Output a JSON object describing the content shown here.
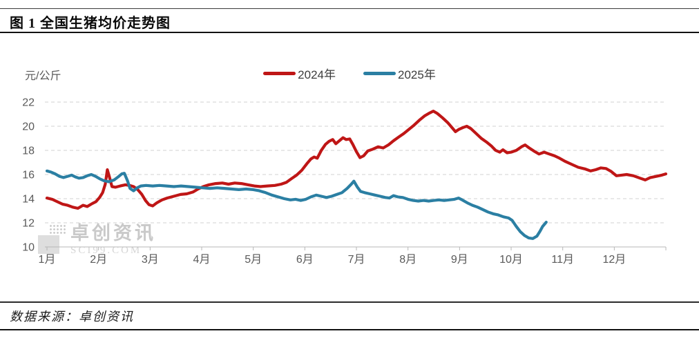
{
  "header": {
    "title": "图 1  全国生猪均价走势图"
  },
  "footer": {
    "source_label": "数据来源：卓创资讯"
  },
  "watermark": {
    "name": "卓创资讯",
    "site": "SCI99.COM"
  },
  "chart_data": {
    "type": "line",
    "title": "全国生猪均价走势图",
    "unit_label": "元/公斤",
    "xlabel": "",
    "ylabel": "元/公斤",
    "ylim": [
      10,
      22
    ],
    "yticks": [
      10,
      12,
      14,
      16,
      18,
      20,
      22
    ],
    "x_unit": "month (0 = Jan 1, 12 = Dec 31)",
    "xtick_labels": [
      "1月",
      "2月",
      "3月",
      "4月",
      "5月",
      "6月",
      "7月",
      "8月",
      "9月",
      "10月",
      "11月",
      "12月"
    ],
    "grid": "dashed horizontal gridlines",
    "legend_position": "top-center",
    "series": [
      {
        "name": "2024年",
        "color": "#bf1616",
        "points": [
          [
            0,
            14.05
          ],
          [
            0.1,
            13.95
          ],
          [
            0.2,
            13.75
          ],
          [
            0.3,
            13.55
          ],
          [
            0.4,
            13.45
          ],
          [
            0.5,
            13.3
          ],
          [
            0.6,
            13.2
          ],
          [
            0.7,
            13.45
          ],
          [
            0.78,
            13.35
          ],
          [
            0.88,
            13.6
          ],
          [
            0.95,
            13.75
          ],
          [
            1.02,
            14.1
          ],
          [
            1.08,
            14.5
          ],
          [
            1.13,
            15.2
          ],
          [
            1.17,
            16.4
          ],
          [
            1.21,
            15.8
          ],
          [
            1.26,
            15.0
          ],
          [
            1.33,
            14.95
          ],
          [
            1.42,
            15.05
          ],
          [
            1.52,
            15.15
          ],
          [
            1.6,
            15.1
          ],
          [
            1.68,
            15.0
          ],
          [
            1.76,
            14.75
          ],
          [
            1.84,
            14.35
          ],
          [
            1.91,
            13.85
          ],
          [
            1.98,
            13.5
          ],
          [
            2.05,
            13.4
          ],
          [
            2.13,
            13.65
          ],
          [
            2.23,
            13.9
          ],
          [
            2.33,
            14.05
          ],
          [
            2.46,
            14.2
          ],
          [
            2.59,
            14.35
          ],
          [
            2.71,
            14.4
          ],
          [
            2.83,
            14.55
          ],
          [
            2.93,
            14.8
          ],
          [
            3.03,
            15.0
          ],
          [
            3.14,
            15.15
          ],
          [
            3.27,
            15.25
          ],
          [
            3.4,
            15.3
          ],
          [
            3.52,
            15.2
          ],
          [
            3.64,
            15.3
          ],
          [
            3.77,
            15.25
          ],
          [
            3.9,
            15.15
          ],
          [
            4.02,
            15.05
          ],
          [
            4.14,
            15.0
          ],
          [
            4.27,
            15.05
          ],
          [
            4.42,
            15.1
          ],
          [
            4.54,
            15.2
          ],
          [
            4.64,
            15.35
          ],
          [
            4.74,
            15.65
          ],
          [
            4.84,
            15.95
          ],
          [
            4.94,
            16.35
          ],
          [
            5.04,
            16.9
          ],
          [
            5.12,
            17.3
          ],
          [
            5.18,
            17.45
          ],
          [
            5.24,
            17.35
          ],
          [
            5.32,
            18.0
          ],
          [
            5.4,
            18.5
          ],
          [
            5.47,
            18.75
          ],
          [
            5.54,
            18.9
          ],
          [
            5.6,
            18.55
          ],
          [
            5.67,
            18.8
          ],
          [
            5.74,
            19.05
          ],
          [
            5.8,
            18.9
          ],
          [
            5.87,
            18.95
          ],
          [
            5.93,
            18.5
          ],
          [
            6.0,
            17.9
          ],
          [
            6.07,
            17.4
          ],
          [
            6.14,
            17.55
          ],
          [
            6.22,
            17.95
          ],
          [
            6.32,
            18.1
          ],
          [
            6.42,
            18.3
          ],
          [
            6.52,
            18.2
          ],
          [
            6.62,
            18.45
          ],
          [
            6.72,
            18.8
          ],
          [
            6.82,
            19.1
          ],
          [
            6.92,
            19.4
          ],
          [
            7.02,
            19.75
          ],
          [
            7.12,
            20.1
          ],
          [
            7.22,
            20.5
          ],
          [
            7.32,
            20.85
          ],
          [
            7.42,
            21.1
          ],
          [
            7.49,
            21.25
          ],
          [
            7.57,
            21.05
          ],
          [
            7.67,
            20.7
          ],
          [
            7.77,
            20.3
          ],
          [
            7.85,
            19.9
          ],
          [
            7.92,
            19.55
          ],
          [
            7.99,
            19.75
          ],
          [
            8.07,
            19.9
          ],
          [
            8.14,
            20.0
          ],
          [
            8.22,
            19.8
          ],
          [
            8.32,
            19.4
          ],
          [
            8.42,
            19.0
          ],
          [
            8.52,
            18.7
          ],
          [
            8.62,
            18.35
          ],
          [
            8.7,
            18.0
          ],
          [
            8.78,
            17.85
          ],
          [
            8.84,
            18.05
          ],
          [
            8.92,
            17.8
          ],
          [
            9.0,
            17.85
          ],
          [
            9.1,
            18.0
          ],
          [
            9.2,
            18.3
          ],
          [
            9.27,
            18.45
          ],
          [
            9.35,
            18.2
          ],
          [
            9.44,
            17.95
          ],
          [
            9.54,
            17.7
          ],
          [
            9.64,
            17.85
          ],
          [
            9.74,
            17.7
          ],
          [
            9.84,
            17.55
          ],
          [
            9.94,
            17.35
          ],
          [
            10.04,
            17.1
          ],
          [
            10.17,
            16.85
          ],
          [
            10.3,
            16.6
          ],
          [
            10.44,
            16.45
          ],
          [
            10.54,
            16.3
          ],
          [
            10.64,
            16.4
          ],
          [
            10.74,
            16.55
          ],
          [
            10.84,
            16.5
          ],
          [
            10.94,
            16.25
          ],
          [
            11.04,
            15.9
          ],
          [
            11.14,
            15.95
          ],
          [
            11.24,
            16.0
          ],
          [
            11.37,
            15.9
          ],
          [
            11.5,
            15.7
          ],
          [
            11.6,
            15.55
          ],
          [
            11.7,
            15.75
          ],
          [
            11.82,
            15.85
          ],
          [
            11.92,
            15.95
          ],
          [
            12.0,
            16.05
          ]
        ]
      },
      {
        "name": "2025年",
        "color": "#2b7fa3",
        "points": [
          [
            0,
            16.3
          ],
          [
            0.08,
            16.2
          ],
          [
            0.16,
            16.05
          ],
          [
            0.24,
            15.85
          ],
          [
            0.32,
            15.75
          ],
          [
            0.4,
            15.85
          ],
          [
            0.48,
            15.95
          ],
          [
            0.55,
            15.8
          ],
          [
            0.62,
            15.7
          ],
          [
            0.7,
            15.75
          ],
          [
            0.78,
            15.9
          ],
          [
            0.86,
            16.0
          ],
          [
            0.94,
            15.85
          ],
          [
            1.02,
            15.65
          ],
          [
            1.1,
            15.5
          ],
          [
            1.2,
            15.4
          ],
          [
            1.3,
            15.55
          ],
          [
            1.38,
            15.8
          ],
          [
            1.45,
            16.05
          ],
          [
            1.5,
            16.1
          ],
          [
            1.56,
            15.5
          ],
          [
            1.61,
            14.85
          ],
          [
            1.68,
            14.65
          ],
          [
            1.75,
            14.9
          ],
          [
            1.82,
            15.05
          ],
          [
            1.92,
            15.1
          ],
          [
            2.05,
            15.05
          ],
          [
            2.18,
            15.1
          ],
          [
            2.32,
            15.05
          ],
          [
            2.46,
            15.0
          ],
          [
            2.6,
            15.05
          ],
          [
            2.74,
            15.0
          ],
          [
            2.88,
            14.95
          ],
          [
            3.02,
            14.9
          ],
          [
            3.16,
            14.85
          ],
          [
            3.3,
            14.9
          ],
          [
            3.44,
            14.85
          ],
          [
            3.58,
            14.8
          ],
          [
            3.72,
            14.75
          ],
          [
            3.86,
            14.8
          ],
          [
            4.0,
            14.75
          ],
          [
            4.12,
            14.65
          ],
          [
            4.24,
            14.5
          ],
          [
            4.36,
            14.3
          ],
          [
            4.48,
            14.15
          ],
          [
            4.6,
            14.0
          ],
          [
            4.72,
            13.9
          ],
          [
            4.82,
            13.95
          ],
          [
            4.92,
            13.85
          ],
          [
            5.02,
            13.95
          ],
          [
            5.12,
            14.15
          ],
          [
            5.22,
            14.3
          ],
          [
            5.32,
            14.2
          ],
          [
            5.42,
            14.1
          ],
          [
            5.52,
            14.2
          ],
          [
            5.62,
            14.35
          ],
          [
            5.72,
            14.5
          ],
          [
            5.82,
            14.85
          ],
          [
            5.9,
            15.2
          ],
          [
            5.95,
            15.45
          ],
          [
            6.02,
            14.95
          ],
          [
            6.08,
            14.6
          ],
          [
            6.16,
            14.5
          ],
          [
            6.26,
            14.4
          ],
          [
            6.36,
            14.3
          ],
          [
            6.46,
            14.2
          ],
          [
            6.56,
            14.1
          ],
          [
            6.64,
            14.05
          ],
          [
            6.72,
            14.25
          ],
          [
            6.8,
            14.15
          ],
          [
            6.9,
            14.1
          ],
          [
            7.0,
            13.95
          ],
          [
            7.1,
            13.85
          ],
          [
            7.2,
            13.8
          ],
          [
            7.3,
            13.85
          ],
          [
            7.4,
            13.8
          ],
          [
            7.5,
            13.85
          ],
          [
            7.6,
            13.9
          ],
          [
            7.7,
            13.85
          ],
          [
            7.8,
            13.9
          ],
          [
            7.9,
            13.95
          ],
          [
            7.98,
            14.05
          ],
          [
            8.05,
            13.9
          ],
          [
            8.15,
            13.65
          ],
          [
            8.25,
            13.45
          ],
          [
            8.35,
            13.3
          ],
          [
            8.45,
            13.1
          ],
          [
            8.55,
            12.9
          ],
          [
            8.65,
            12.75
          ],
          [
            8.75,
            12.65
          ],
          [
            8.85,
            12.5
          ],
          [
            8.95,
            12.4
          ],
          [
            9.02,
            12.2
          ],
          [
            9.1,
            11.7
          ],
          [
            9.18,
            11.25
          ],
          [
            9.26,
            10.95
          ],
          [
            9.34,
            10.75
          ],
          [
            9.42,
            10.7
          ],
          [
            9.5,
            10.9
          ],
          [
            9.56,
            11.3
          ],
          [
            9.61,
            11.7
          ],
          [
            9.65,
            11.9
          ],
          [
            9.68,
            12.05
          ]
        ]
      }
    ]
  }
}
